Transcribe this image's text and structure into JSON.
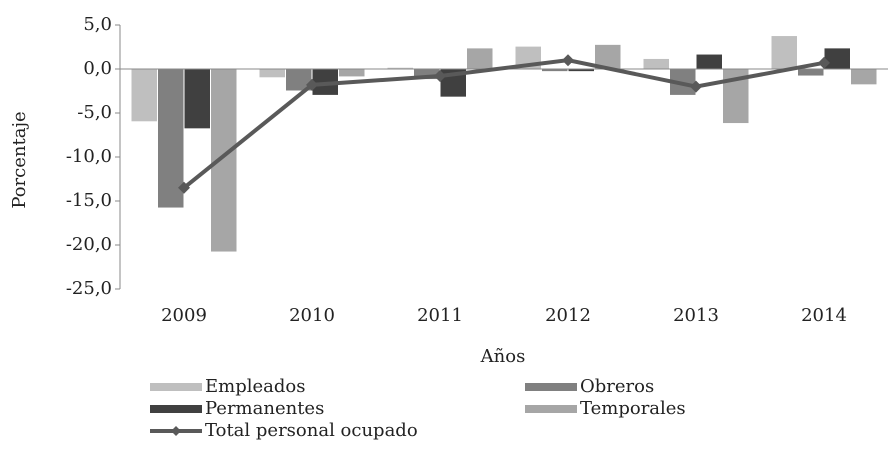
{
  "chart_data": {
    "type": "bar",
    "x_label": "Años",
    "y_label": "Porcentaje",
    "categories": [
      "2009",
      "2010",
      "2011",
      "2012",
      "2013",
      "2014"
    ],
    "series": [
      {
        "name": "Empleados",
        "color": "#bfbfbf",
        "values": [
          -6.0,
          -1.0,
          0.2,
          2.6,
          1.2,
          3.8
        ]
      },
      {
        "name": "Obreros",
        "color": "#808080",
        "values": [
          -15.8,
          -2.5,
          -1.2,
          -0.3,
          -3.0,
          -0.8
        ]
      },
      {
        "name": "Permanentes",
        "color": "#404040",
        "values": [
          -6.8,
          -3.0,
          -3.2,
          -0.3,
          1.7,
          2.4
        ]
      },
      {
        "name": "Temporales",
        "color": "#a6a6a6",
        "values": [
          -20.8,
          -0.9,
          2.4,
          2.8,
          -6.2,
          -1.8
        ]
      },
      {
        "name": "Total personal ocupado",
        "type": "line",
        "color": "#595959",
        "values": [
          -13.5,
          -1.8,
          -0.8,
          1.0,
          -2.0,
          0.7
        ]
      }
    ],
    "ylim": [
      -25,
      5
    ],
    "yticks": [
      {
        "value": 5,
        "label": "5,0"
      },
      {
        "value": 0,
        "label": "0,0"
      },
      {
        "value": -5,
        "label": "-5,0"
      },
      {
        "value": -10,
        "label": "-10,0"
      },
      {
        "value": -15,
        "label": "-15,0"
      },
      {
        "value": -20,
        "label": "-20,0"
      },
      {
        "value": -25,
        "label": "-25,0"
      }
    ]
  }
}
